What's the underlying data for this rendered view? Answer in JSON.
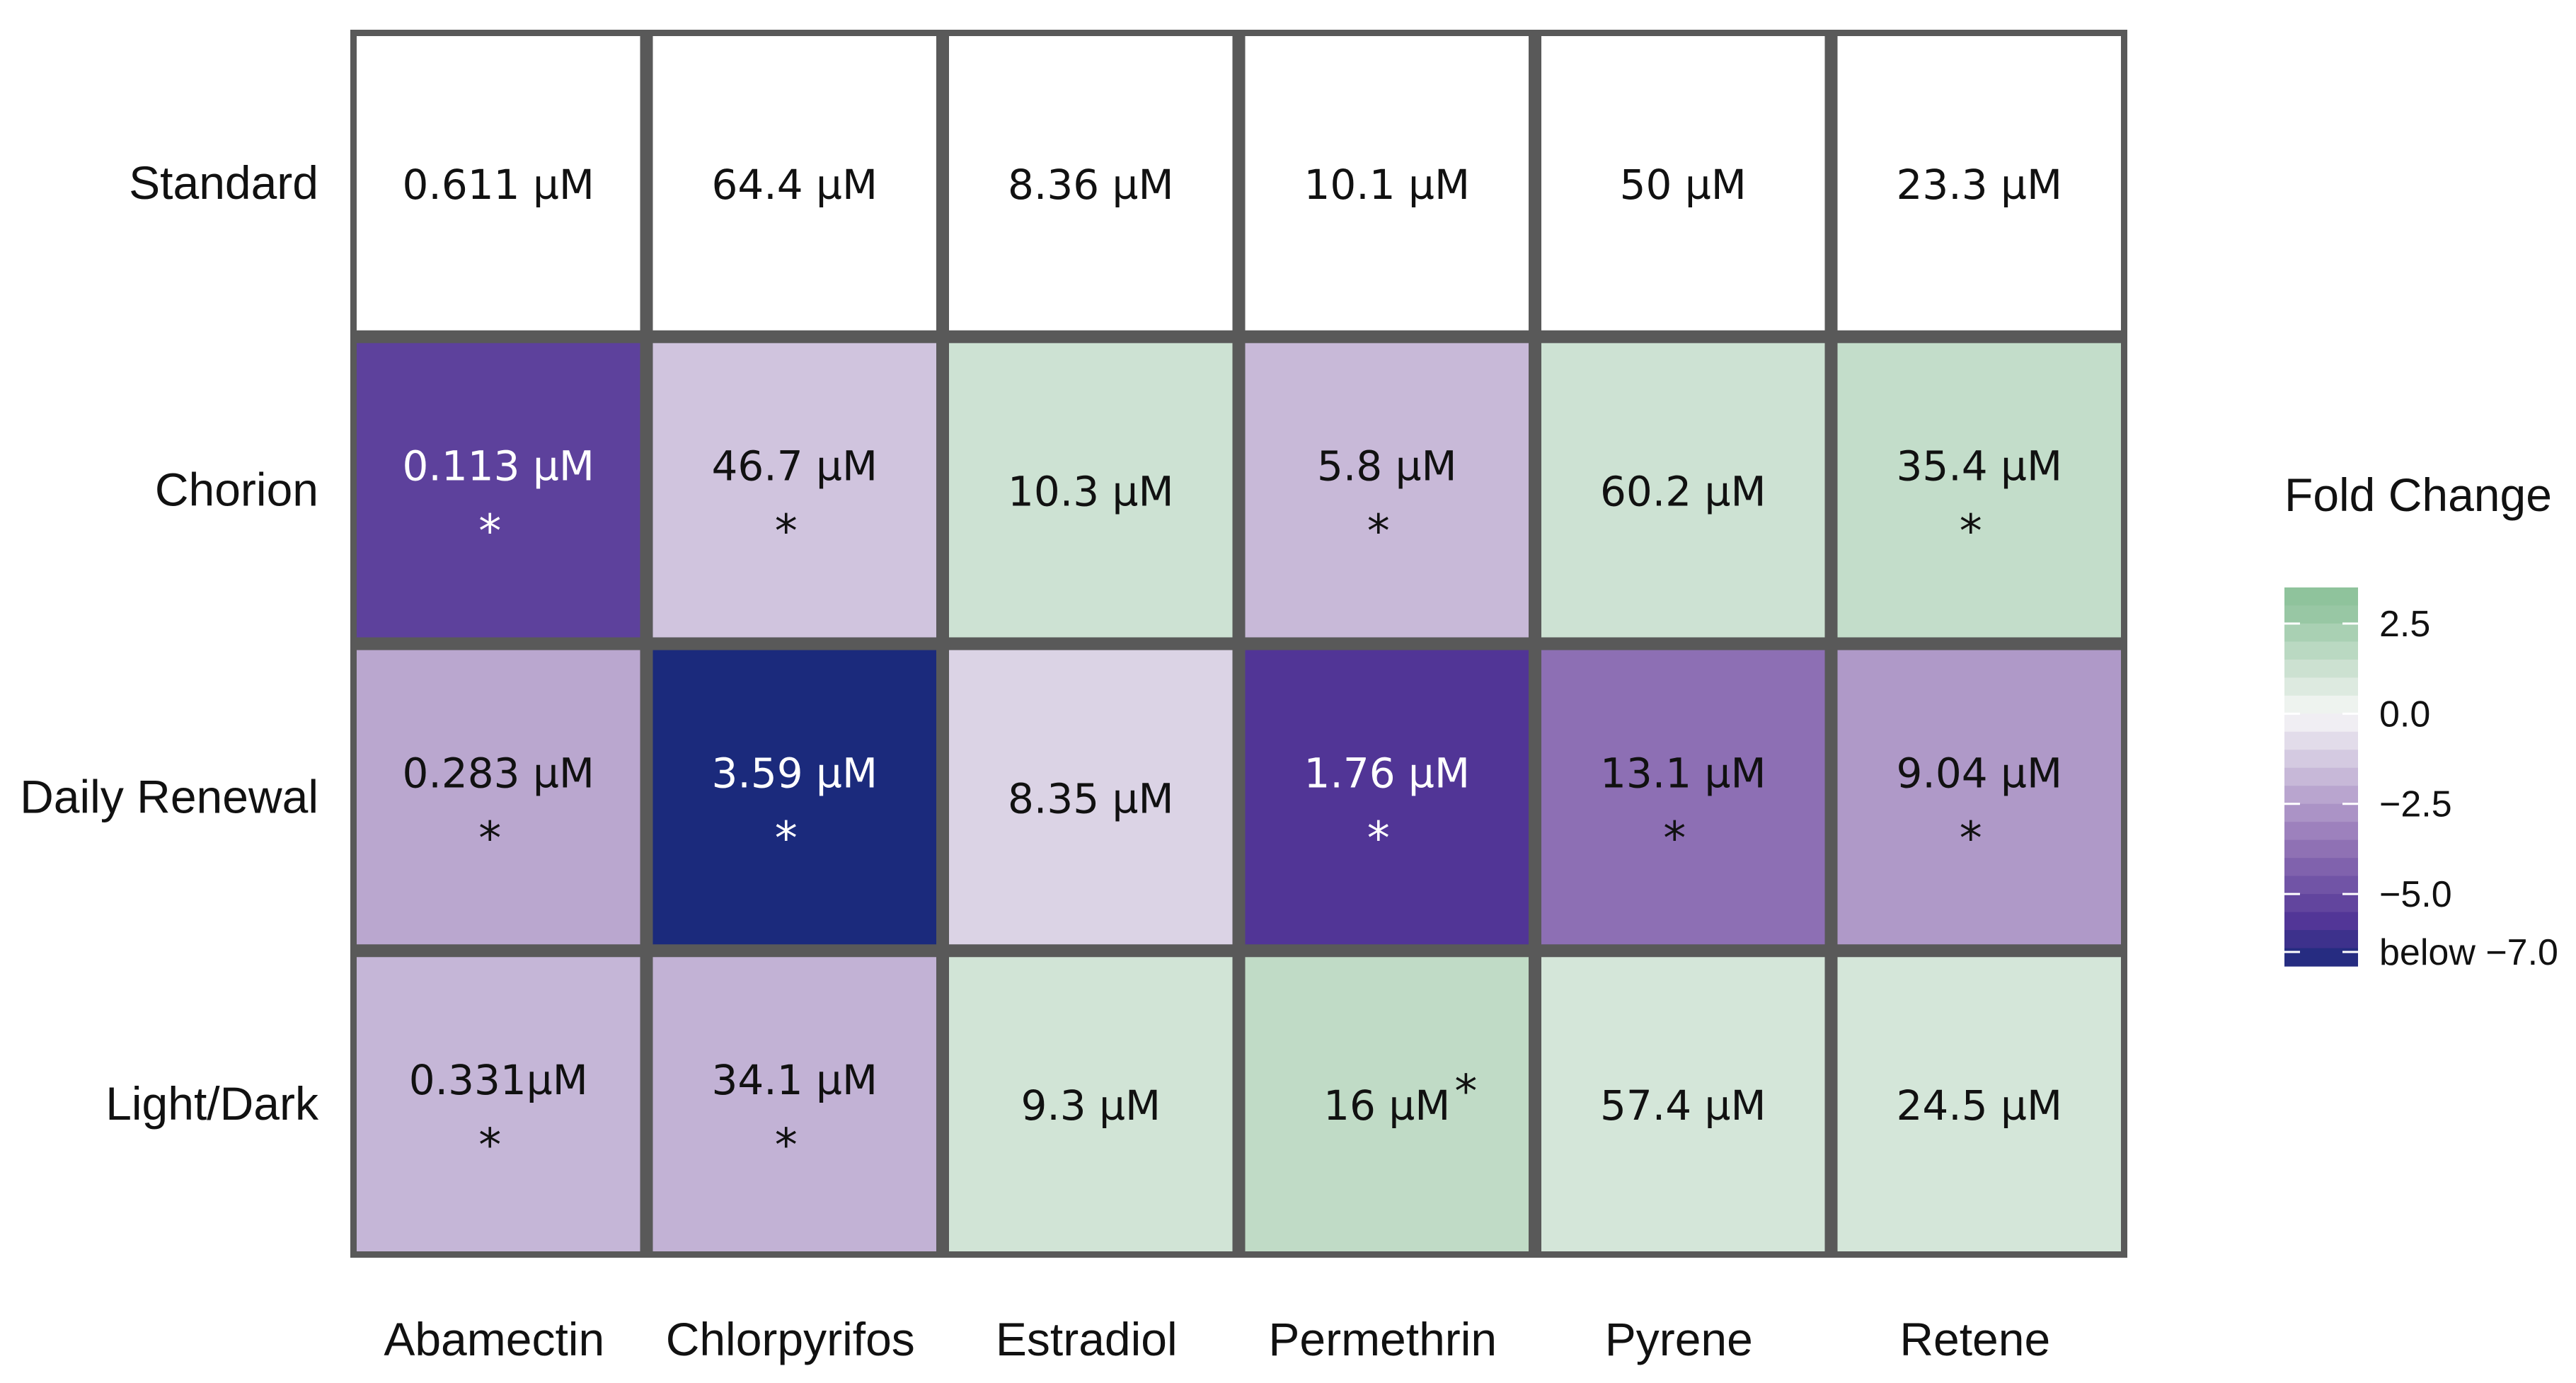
{
  "chart_data": {
    "type": "heatmap",
    "rows": [
      "Standard",
      "Chorion",
      "Daily Renewal",
      "Light/Dark"
    ],
    "columns": [
      "Abamectin",
      "Chlorpyrifos",
      "Estradiol",
      "Permethrin",
      "Pyrene",
      "Retene"
    ],
    "cells": [
      [
        {
          "label": "0.611 µM",
          "fold_change": null,
          "significant": false
        },
        {
          "label": "64.4 µM",
          "fold_change": null,
          "significant": false
        },
        {
          "label": "8.36 µM",
          "fold_change": null,
          "significant": false
        },
        {
          "label": "10.1 µM",
          "fold_change": null,
          "significant": false
        },
        {
          "label": "50 µM",
          "fold_change": null,
          "significant": false
        },
        {
          "label": "23.3 µM",
          "fold_change": null,
          "significant": false
        }
      ],
      [
        {
          "label": "0.113 µM",
          "fold_change": -5.4,
          "significant": true
        },
        {
          "label": "46.7 µM",
          "fold_change": -1.4,
          "significant": true
        },
        {
          "label": "10.3 µM",
          "fold_change": 1.2,
          "significant": false
        },
        {
          "label": "5.8 µM",
          "fold_change": -1.7,
          "significant": true
        },
        {
          "label": "60.2 µM",
          "fold_change": 1.2,
          "significant": false
        },
        {
          "label": "35.4 µM",
          "fold_change": 1.5,
          "significant": true
        }
      ],
      [
        {
          "label": "0.283 µM",
          "fold_change": -2.2,
          "significant": true
        },
        {
          "label": "3.59 µM",
          "fold_change": -7.5,
          "significant": true
        },
        {
          "label": "8.35 µM",
          "fold_change": -1.0,
          "significant": false
        },
        {
          "label": "1.76 µM",
          "fold_change": -5.8,
          "significant": true
        },
        {
          "label": "13.1 µM",
          "fold_change": -3.8,
          "significant": true
        },
        {
          "label": "9.04 µM",
          "fold_change": -2.6,
          "significant": true
        }
      ],
      [
        {
          "label": "0.331µM",
          "fold_change": -1.8,
          "significant": true
        },
        {
          "label": "34.1 µM",
          "fold_change": -1.9,
          "significant": true
        },
        {
          "label": "9.3 µM",
          "fold_change": 1.1,
          "significant": false
        },
        {
          "label": "16 µM",
          "fold_change": 1.6,
          "significant": true,
          "asterisk_position": "superscript"
        },
        {
          "label": "57.4 µM",
          "fold_change": 1.0,
          "significant": false
        },
        {
          "label": "24.5 µM",
          "fold_change": 1.0,
          "significant": false
        }
      ]
    ],
    "significance_marker": "*",
    "legend": {
      "title": "Fold Change",
      "ticks": [
        {
          "value": 2.5,
          "label": "2.5"
        },
        {
          "value": 0.0,
          "label": "0.0"
        },
        {
          "value": -2.5,
          "label": "−2.5"
        },
        {
          "value": -5.0,
          "label": "−5.0"
        },
        {
          "value": -7.0,
          "label": "below −7.0"
        }
      ],
      "range": [
        -7.0,
        3.5
      ],
      "position": "right"
    },
    "colors": {
      "border": "#595959",
      "positive_max": "#8fc39c",
      "neutral": "#f7f7f7",
      "negative_mid": "#9678b8",
      "negative_strong": "#513596",
      "negative_extreme": "#1b2a7c",
      "standard": "#ffffff"
    }
  }
}
